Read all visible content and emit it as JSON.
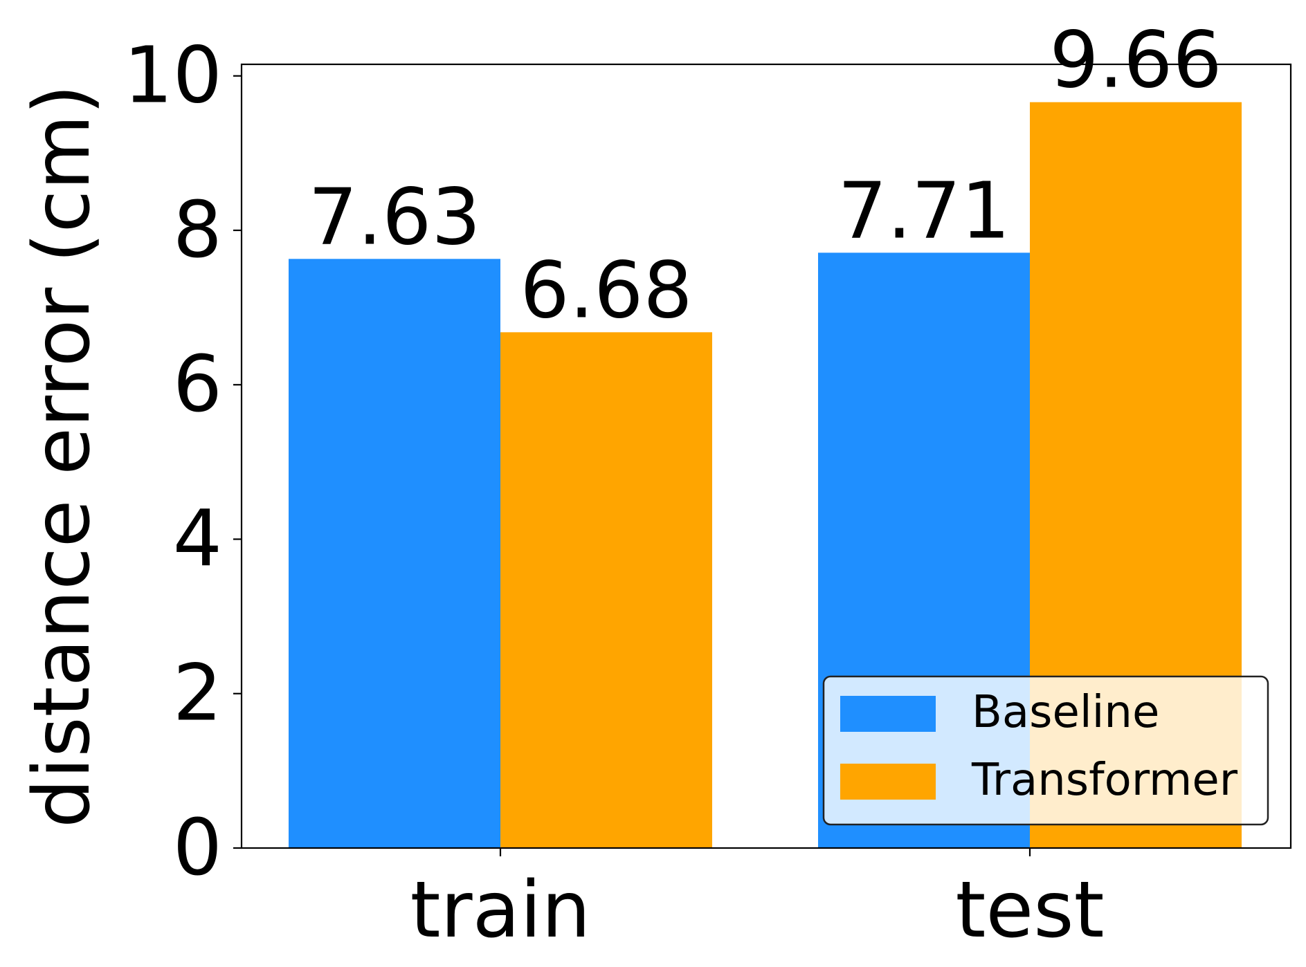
{
  "chart_data": {
    "type": "bar",
    "title": "",
    "xlabel": "",
    "ylabel": "distance error (cm)",
    "categories": [
      "train",
      "test"
    ],
    "series": [
      {
        "name": "Baseline",
        "values": [
          7.63,
          7.71
        ],
        "color": "#1f8fff"
      },
      {
        "name": "Transformer",
        "values": [
          6.68,
          9.66
        ],
        "color": "#ffa500"
      }
    ],
    "data_labels": [
      [
        "7.63",
        "7.71"
      ],
      [
        "6.68",
        "9.66"
      ]
    ],
    "ylim": [
      0,
      10.15
    ],
    "yticks": [
      0,
      2,
      4,
      6,
      8,
      10
    ],
    "ytick_labels": [
      "0",
      "2",
      "4",
      "6",
      "8",
      "10"
    ],
    "grid": false,
    "legend": {
      "position": "lower-right"
    }
  }
}
